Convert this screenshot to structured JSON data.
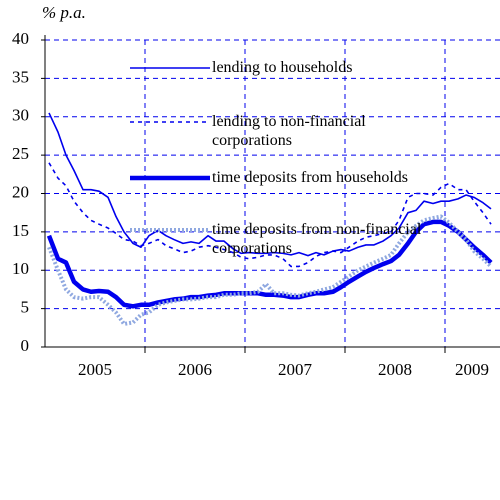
{
  "chart_data": {
    "type": "line",
    "y_label": "% p.a.",
    "x": [
      2005.04,
      2005.13,
      2005.21,
      2005.29,
      2005.38,
      2005.46,
      2005.54,
      2005.63,
      2005.71,
      2005.79,
      2005.88,
      2005.96,
      2006.04,
      2006.13,
      2006.21,
      2006.29,
      2006.38,
      2006.46,
      2006.54,
      2006.63,
      2006.71,
      2006.79,
      2006.88,
      2006.96,
      2007.04,
      2007.13,
      2007.21,
      2007.29,
      2007.38,
      2007.46,
      2007.54,
      2007.63,
      2007.71,
      2007.79,
      2007.88,
      2007.96,
      2008.04,
      2008.13,
      2008.21,
      2008.29,
      2008.38,
      2008.46,
      2008.54,
      2008.63,
      2008.71,
      2008.79,
      2008.88,
      2008.96,
      2009.04,
      2009.13,
      2009.21,
      2009.29,
      2009.38,
      2009.46
    ],
    "series": [
      {
        "name": "lending to households",
        "color": "#0000ee",
        "width": 1.6,
        "dash": "none",
        "values": [
          30.5,
          28,
          25,
          23,
          20.5,
          20.5,
          20.3,
          19.5,
          17,
          15,
          13.5,
          13,
          14.5,
          15.2,
          14.5,
          14,
          13.5,
          13.7,
          13.5,
          14.5,
          13.8,
          13.8,
          12.8,
          12.2,
          12.3,
          12.2,
          12.2,
          12.3,
          12.2,
          12,
          12.3,
          11.9,
          12.3,
          12,
          12.5,
          12.7,
          12.5,
          13,
          13.3,
          13.3,
          13.8,
          14.5,
          15.5,
          17.5,
          17.8,
          19,
          18.7,
          19,
          19,
          19.3,
          19.8,
          19.5,
          18.8,
          18
        ]
      },
      {
        "name": "lending to non-financial corporations",
        "color": "#0000ee",
        "width": 1.6,
        "dash": "4 4",
        "values": [
          24,
          22,
          21,
          19,
          17.5,
          16.5,
          16,
          15.5,
          14.8,
          14,
          13.8,
          13.2,
          13.5,
          14,
          13.2,
          12.8,
          12.3,
          12.5,
          13,
          13.2,
          13,
          12.7,
          12.3,
          11.7,
          11.5,
          11.7,
          12,
          12,
          11.5,
          10.5,
          10.5,
          11,
          11.8,
          12.3,
          12.5,
          12.3,
          13,
          13.8,
          14.3,
          14.5,
          14.8,
          15,
          16.5,
          19.5,
          20,
          20,
          19.8,
          20.8,
          21.3,
          20.5,
          20.5,
          19,
          17.5,
          16
        ]
      },
      {
        "name": "time deposits from households",
        "color": "#0000ee",
        "width": 4.5,
        "dash": "none",
        "values": [
          14.5,
          11.5,
          11,
          8.5,
          7.5,
          7.2,
          7.3,
          7.2,
          6.5,
          5.5,
          5.3,
          5.5,
          5.5,
          5.8,
          6,
          6.2,
          6.3,
          6.5,
          6.5,
          6.7,
          6.8,
          7,
          7,
          7,
          7,
          7,
          6.8,
          6.8,
          6.7,
          6.5,
          6.5,
          6.8,
          7,
          7,
          7.2,
          7.8,
          8.5,
          9.2,
          9.8,
          10.3,
          10.8,
          11.2,
          12,
          13.5,
          15,
          16,
          16.3,
          16.3,
          15.8,
          15,
          14,
          13,
          12,
          11
        ]
      },
      {
        "name": "time deposits from non-financial corporations",
        "color": "#8fa8e0",
        "width": 4,
        "dash": "2 2",
        "values": [
          13,
          10,
          7.5,
          6.5,
          6.3,
          6.5,
          6.5,
          5.5,
          4.5,
          3,
          3.2,
          4.2,
          4.5,
          5.5,
          5.8,
          6,
          6.2,
          6.2,
          6.3,
          6.5,
          6.5,
          6.8,
          6.8,
          7,
          7,
          7.2,
          8.2,
          7,
          7,
          6.8,
          6.7,
          7,
          7.2,
          7.5,
          7.8,
          8.5,
          9.2,
          10,
          10.5,
          11,
          11.5,
          12,
          13.5,
          15,
          15.8,
          16.5,
          16.8,
          17,
          16.2,
          15,
          14,
          12.5,
          11.5,
          10.5
        ]
      }
    ],
    "xlim": [
      2005,
      2009.55
    ],
    "xticks": [
      {
        "value": 2005.5,
        "label": "2005"
      },
      {
        "value": 2006.5,
        "label": "2006"
      },
      {
        "value": 2007.5,
        "label": "2007"
      },
      {
        "value": 2008.5,
        "label": "2008"
      },
      {
        "value": 2009.27,
        "label": "2009"
      }
    ],
    "xgrid": [
      2006,
      2007,
      2008,
      2009
    ],
    "ylim": [
      0,
      40
    ],
    "yticks": [
      0,
      5,
      10,
      15,
      20,
      25,
      30,
      35,
      40
    ],
    "grid": true
  }
}
